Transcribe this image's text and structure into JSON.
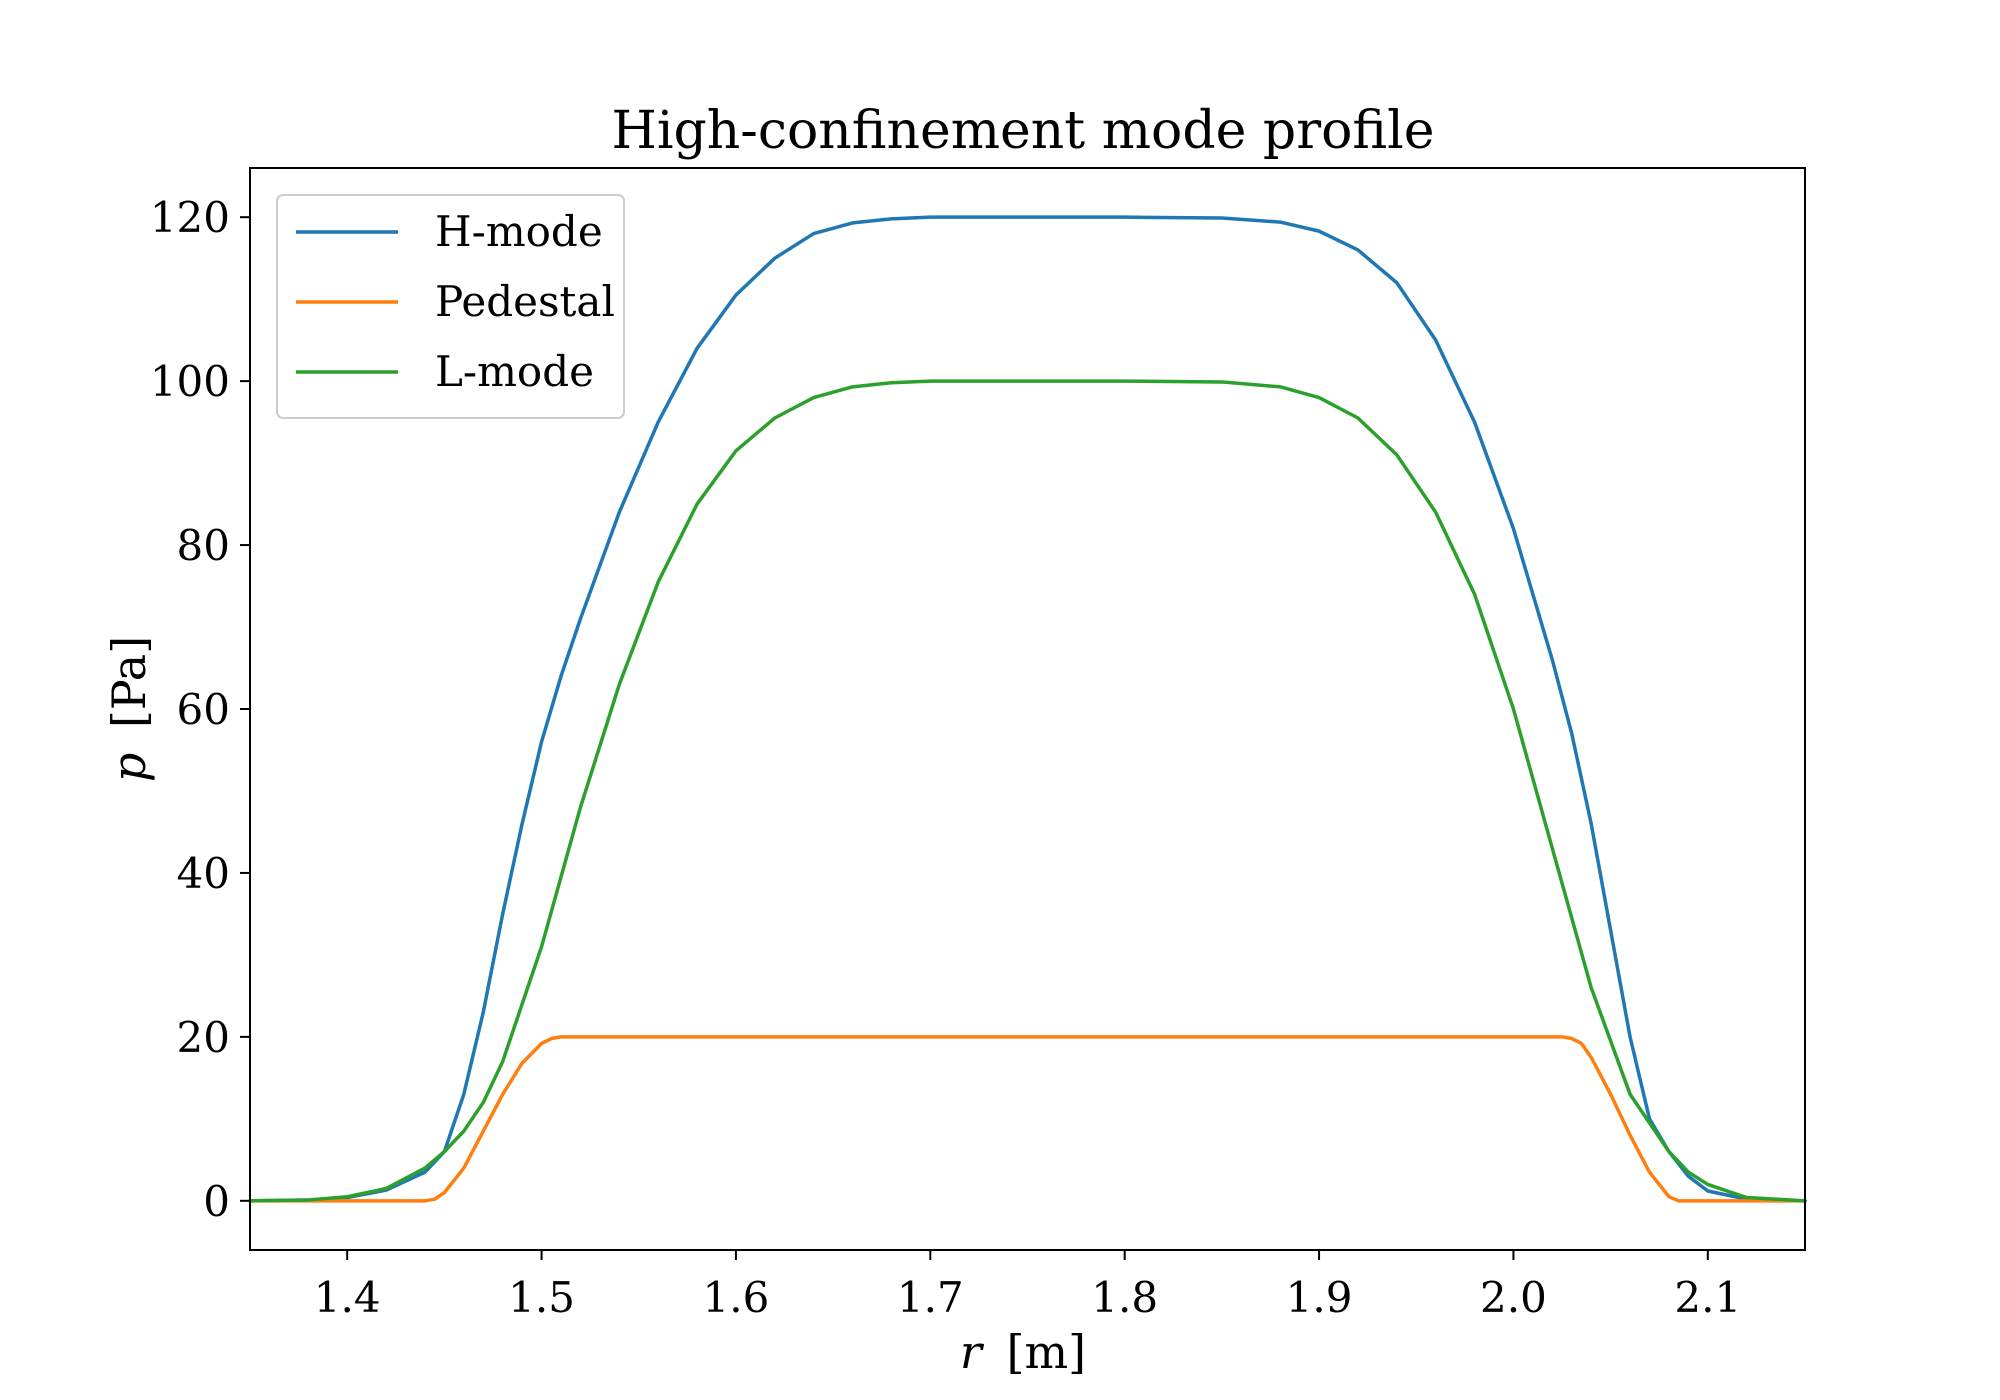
{
  "chart_data": {
    "type": "line",
    "title": "High-confinement mode profile",
    "xlabel": {
      "var": "r",
      "unit": "[m]"
    },
    "ylabel": {
      "var": "p",
      "unit": "[Pa]"
    },
    "xlim": [
      1.35,
      2.15
    ],
    "ylim": [
      -6,
      126
    ],
    "xticks": [
      1.4,
      1.5,
      1.6,
      1.7,
      1.8,
      1.9,
      2.0,
      2.1
    ],
    "xtick_labels": [
      "1.4",
      "1.5",
      "1.6",
      "1.7",
      "1.8",
      "1.9",
      "2.0",
      "2.1"
    ],
    "yticks": [
      0,
      20,
      40,
      60,
      80,
      100,
      120
    ],
    "ytick_labels": [
      "0",
      "20",
      "40",
      "60",
      "80",
      "100",
      "120"
    ],
    "grid": false,
    "legend_position": "top-left",
    "series": [
      {
        "name": "H-mode",
        "color": "#1f77b4",
        "x": [
          1.35,
          1.38,
          1.4,
          1.42,
          1.44,
          1.45,
          1.46,
          1.47,
          1.48,
          1.49,
          1.5,
          1.51,
          1.52,
          1.54,
          1.56,
          1.58,
          1.6,
          1.62,
          1.64,
          1.66,
          1.68,
          1.7,
          1.75,
          1.8,
          1.85,
          1.88,
          1.9,
          1.92,
          1.94,
          1.96,
          1.98,
          2.0,
          2.02,
          2.03,
          2.04,
          2.05,
          2.06,
          2.07,
          2.08,
          2.085,
          2.09,
          2.1,
          2.12,
          2.15
        ],
        "y": [
          0,
          0.1,
          0.4,
          1.3,
          3.5,
          6,
          13,
          23,
          35,
          46,
          56,
          64,
          71,
          84,
          95,
          104,
          110.5,
          115,
          118,
          119.3,
          119.8,
          120,
          120,
          120,
          119.9,
          119.4,
          118.3,
          116,
          112,
          105,
          95,
          82,
          66,
          57,
          46,
          33,
          20,
          10,
          6,
          4.5,
          3,
          1.2,
          0.2,
          0
        ]
      },
      {
        "name": "Pedestal",
        "color": "#ff7f0e",
        "x": [
          1.35,
          1.44,
          1.445,
          1.45,
          1.46,
          1.47,
          1.48,
          1.49,
          1.5,
          1.505,
          1.51,
          1.6,
          1.7,
          1.8,
          1.9,
          2.0,
          2.025,
          2.03,
          2.035,
          2.04,
          2.05,
          2.06,
          2.07,
          2.08,
          2.085,
          2.1,
          2.15
        ],
        "y": [
          0,
          0,
          0.2,
          1,
          4,
          8.5,
          13,
          16.8,
          19.2,
          19.8,
          20,
          20,
          20,
          20,
          20,
          20,
          20,
          19.8,
          19.2,
          17.5,
          13,
          8,
          3.5,
          0.5,
          0,
          0,
          0
        ]
      },
      {
        "name": "L-mode",
        "color": "#2ca02c",
        "x": [
          1.35,
          1.38,
          1.4,
          1.42,
          1.44,
          1.45,
          1.46,
          1.47,
          1.48,
          1.49,
          1.5,
          1.52,
          1.54,
          1.56,
          1.58,
          1.6,
          1.62,
          1.64,
          1.66,
          1.68,
          1.7,
          1.75,
          1.8,
          1.85,
          1.88,
          1.9,
          1.92,
          1.94,
          1.96,
          1.98,
          2.0,
          2.02,
          2.04,
          2.06,
          2.08,
          2.09,
          2.1,
          2.12,
          2.15
        ],
        "y": [
          0,
          0.1,
          0.5,
          1.5,
          4,
          6,
          8.5,
          12,
          17,
          24,
          31,
          48,
          63,
          75.5,
          85,
          91.5,
          95.5,
          98,
          99.3,
          99.8,
          100,
          100,
          100,
          99.9,
          99.3,
          98,
          95.5,
          91,
          84,
          74,
          60,
          43,
          26,
          13,
          6,
          3.5,
          2,
          0.4,
          0
        ]
      }
    ]
  }
}
